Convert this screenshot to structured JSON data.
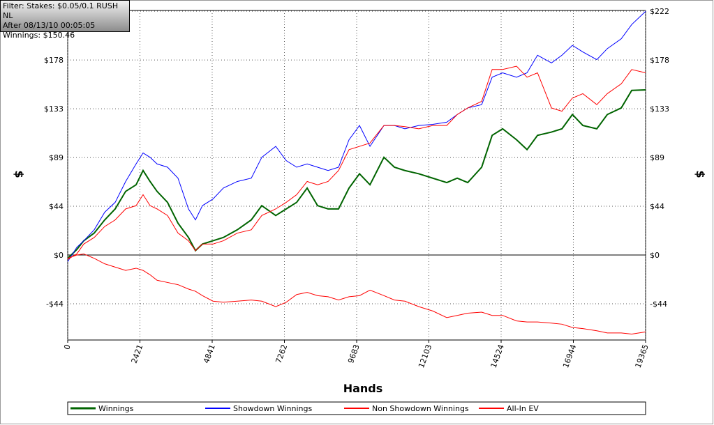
{
  "filter_box": {
    "lines": [
      "Filter: Stakes: $0.05/0.1 RUSH NL",
      "After 08/13/10 00:05:05",
      "Winnings: $150.46"
    ]
  },
  "chart_data": {
    "type": "line",
    "xlabel": "Hands",
    "ylabel": "$",
    "x": [
      0,
      304,
      538,
      889,
      1240,
      1591,
      1942,
      2292,
      2526,
      2760,
      2994,
      3345,
      3696,
      4047,
      4281,
      4515,
      4866,
      5216,
      5684,
      6152,
      6503,
      6971,
      7322,
      7673,
      8024,
      8374,
      8725,
      9076,
      9427,
      9778,
      10129,
      10597,
      10948,
      11298,
      11766,
      12234,
      12702,
      13053,
      13404,
      13872,
      14223,
      14574,
      15041,
      15392,
      15743,
      16211,
      16562,
      16912,
      17262,
      17730,
      18081,
      18549,
      18900,
      19365
    ],
    "series": [
      {
        "name": "Winnings",
        "color": "#006400",
        "width": 2,
        "values": [
          -3,
          5,
          13,
          20,
          32,
          42,
          58,
          64,
          77,
          67,
          58,
          48,
          29,
          16,
          4,
          10,
          13,
          16,
          23,
          32,
          45,
          36,
          42,
          48,
          61,
          45,
          42,
          42,
          61,
          74,
          64,
          89,
          80,
          77,
          74,
          70,
          66,
          70,
          66,
          80,
          109,
          115,
          105,
          96,
          109,
          112,
          115,
          128,
          118,
          115,
          128,
          134,
          150,
          150.46
        ]
      },
      {
        "name": "Showdown Winnings",
        "color": "#0000ff",
        "width": 1,
        "values": [
          -6,
          7,
          13,
          23,
          39,
          48,
          67,
          83,
          93,
          89,
          83,
          80,
          70,
          42,
          32,
          45,
          51,
          61,
          67,
          70,
          89,
          99,
          86,
          80,
          83,
          80,
          77,
          80,
          105,
          118,
          99,
          118,
          118,
          115,
          118,
          119,
          121,
          128,
          134,
          137,
          162,
          166,
          162,
          166,
          182,
          175,
          182,
          191,
          185,
          178,
          188,
          197,
          210,
          222
        ]
      },
      {
        "name": "Non Showdown Winnings",
        "color": "#ff0000",
        "width": 1,
        "values": [
          -3,
          0,
          1,
          -3,
          -8,
          -11,
          -14,
          -12,
          -14,
          -18,
          -23,
          -25,
          -27,
          -31,
          -33,
          -37,
          -42,
          -43,
          -42,
          -41,
          -42,
          -47,
          -43,
          -36,
          -34,
          -37,
          -38,
          -41,
          -38,
          -37,
          -32,
          -37,
          -41,
          -42,
          -47,
          -51,
          -57,
          -55,
          -53,
          -52,
          -55,
          -55,
          -60,
          -61,
          -61,
          -62,
          -63,
          -66,
          -67,
          -69,
          -71,
          -71,
          -72,
          -70
        ]
      },
      {
        "name": "All-In EV",
        "color": "#ff0000",
        "width": 1,
        "values": [
          -4,
          1,
          10,
          16,
          26,
          32,
          42,
          45,
          55,
          45,
          42,
          36,
          20,
          13,
          4,
          10,
          10,
          13,
          20,
          23,
          36,
          42,
          48,
          55,
          67,
          64,
          67,
          77,
          96,
          99,
          102,
          118,
          118,
          117,
          115,
          118,
          118,
          128,
          134,
          140,
          169,
          169,
          172,
          162,
          166,
          134,
          131,
          143,
          147,
          137,
          147,
          156,
          169,
          166
        ]
      }
    ],
    "xlim": [
      0,
      19365
    ],
    "xticks": [
      0,
      2421,
      4841,
      7262,
      9683,
      12103,
      14524,
      16944,
      19365
    ],
    "ylim": [
      -77.4,
      222.8
    ],
    "yticks": [
      {
        "value": -44.42,
        "label": "-$44"
      },
      {
        "value": 0,
        "label": "$0"
      },
      {
        "value": 44.42,
        "label": "$44"
      },
      {
        "value": 88.84,
        "label": "$89"
      },
      {
        "value": 133.26,
        "label": "$133"
      },
      {
        "value": 177.68,
        "label": "$178"
      },
      {
        "value": 222.1,
        "label": "$222"
      }
    ],
    "grid": true
  }
}
